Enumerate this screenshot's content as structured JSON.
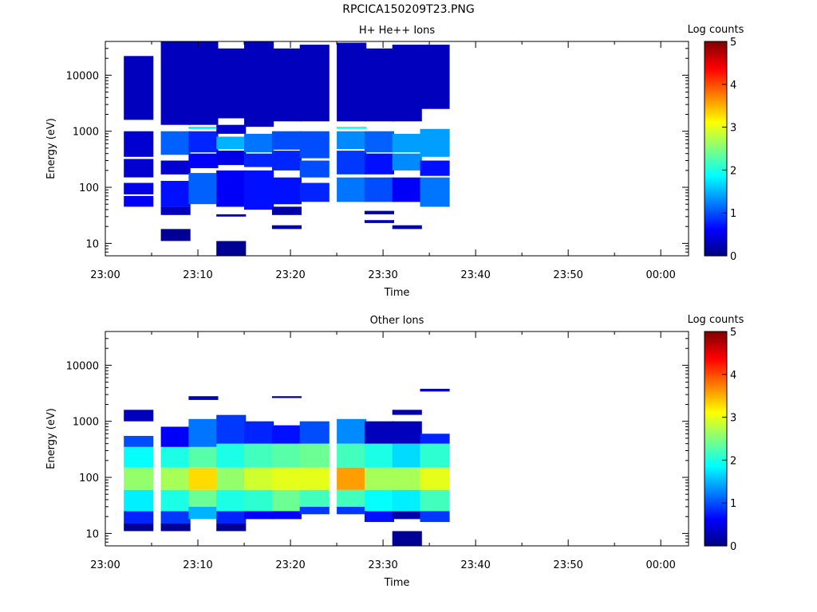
{
  "page_title": "RPCICA150209T23.PNG",
  "chart_data": [
    {
      "type": "heatmap",
      "title": "H+ He++ Ions",
      "xlabel": "Time",
      "ylabel": "Energy (eV)",
      "yscale": "log",
      "ylim": [
        6,
        40000
      ],
      "xlim": [
        "23:00",
        "00:03"
      ],
      "x_ticks": [
        "23:00",
        "23:10",
        "23:20",
        "23:30",
        "23:40",
        "23:50",
        "00:00"
      ],
      "y_ticks": [
        "10",
        "100",
        "1000",
        "10000"
      ],
      "colorbar": {
        "label": "Log counts",
        "min": 0,
        "max": 5,
        "ticks": [
          "0",
          "1",
          "2",
          "3",
          "4",
          "5"
        ]
      },
      "time_bins": [
        "23:02",
        "23:06",
        "23:09",
        "23:12",
        "23:15",
        "23:18",
        "23:21",
        "23:25",
        "23:28",
        "23:31",
        "23:34"
      ],
      "bands": [
        {
          "t": 0,
          "e": [
            45,
            70
          ],
          "v": 0.6
        },
        {
          "t": 0,
          "e": [
            75,
            120
          ],
          "v": 0.5
        },
        {
          "t": 0,
          "e": [
            150,
            320
          ],
          "v": 0.4
        },
        {
          "t": 0,
          "e": [
            350,
            1000
          ],
          "v": 0.4
        },
        {
          "t": 0,
          "e": [
            1600,
            22000
          ],
          "v": 0.3
        },
        {
          "t": 1,
          "e": [
            11,
            18
          ],
          "v": 0.1
        },
        {
          "t": 1,
          "e": [
            32,
            45
          ],
          "v": 0.3
        },
        {
          "t": 1,
          "e": [
            45,
            130
          ],
          "v": 0.7
        },
        {
          "t": 1,
          "e": [
            170,
            300
          ],
          "v": 0.4
        },
        {
          "t": 1,
          "e": [
            380,
            1000
          ],
          "v": 1.1
        },
        {
          "t": 1,
          "e": [
            1300,
            40000
          ],
          "v": 0.3
        },
        {
          "t": 2,
          "e": [
            50,
            180
          ],
          "v": 1.1
        },
        {
          "t": 2,
          "e": [
            220,
            400
          ],
          "v": 0.6
        },
        {
          "t": 2,
          "e": [
            420,
            1000
          ],
          "v": 0.8
        },
        {
          "t": 2,
          "e": [
            1100,
            1200
          ],
          "v": 1.8
        },
        {
          "t": 2,
          "e": [
            1300,
            40000
          ],
          "v": 0.3
        },
        {
          "t": 3,
          "e": [
            6,
            11
          ],
          "v": 0.1
        },
        {
          "t": 3,
          "e": [
            30,
            33
          ],
          "v": 0.3
        },
        {
          "t": 3,
          "e": [
            45,
            200
          ],
          "v": 0.6
        },
        {
          "t": 3,
          "e": [
            250,
            450
          ],
          "v": 0.5
        },
        {
          "t": 3,
          "e": [
            480,
            800
          ],
          "v": 1.5
        },
        {
          "t": 3,
          "e": [
            900,
            1300
          ],
          "v": 0.4
        },
        {
          "t": 3,
          "e": [
            1700,
            30000
          ],
          "v": 0.3
        },
        {
          "t": 4,
          "e": [
            40,
            200
          ],
          "v": 0.7
        },
        {
          "t": 4,
          "e": [
            230,
            400
          ],
          "v": 0.8
        },
        {
          "t": 4,
          "e": [
            420,
            900
          ],
          "v": 1.2
        },
        {
          "t": 4,
          "e": [
            1200,
            40000
          ],
          "v": 0.3
        },
        {
          "t": 5,
          "e": [
            32,
            45
          ],
          "v": 0.2
        },
        {
          "t": 5,
          "e": [
            50,
            150
          ],
          "v": 0.7
        },
        {
          "t": 5,
          "e": [
            200,
            450
          ],
          "v": 0.8
        },
        {
          "t": 5,
          "e": [
            470,
            1000
          ],
          "v": 1.0
        },
        {
          "t": 5,
          "e": [
            18,
            21
          ],
          "v": 0.2
        },
        {
          "t": 5,
          "e": [
            1500,
            30000
          ],
          "v": 0.3
        },
        {
          "t": 6,
          "e": [
            55,
            120
          ],
          "v": 0.8
        },
        {
          "t": 6,
          "e": [
            150,
            300
          ],
          "v": 1.0
        },
        {
          "t": 6,
          "e": [
            330,
            1000
          ],
          "v": 1.0
        },
        {
          "t": 6,
          "e": [
            1500,
            35000
          ],
          "v": 0.3
        },
        {
          "t": 7,
          "e": [
            55,
            150
          ],
          "v": 1.2
        },
        {
          "t": 7,
          "e": [
            170,
            450
          ],
          "v": 0.9
        },
        {
          "t": 7,
          "e": [
            480,
            1000
          ],
          "v": 1.3
        },
        {
          "t": 7,
          "e": [
            1100,
            1200
          ],
          "v": 2.0
        },
        {
          "t": 7,
          "e": [
            1500,
            38000
          ],
          "v": 0.3
        },
        {
          "t": 8,
          "e": [
            23,
            26
          ],
          "v": 0.3
        },
        {
          "t": 8,
          "e": [
            33,
            38
          ],
          "v": 0.2
        },
        {
          "t": 8,
          "e": [
            55,
            150
          ],
          "v": 1.0
        },
        {
          "t": 8,
          "e": [
            170,
            400
          ],
          "v": 0.7
        },
        {
          "t": 8,
          "e": [
            420,
            1000
          ],
          "v": 1.1
        },
        {
          "t": 8,
          "e": [
            1500,
            30000
          ],
          "v": 0.3
        },
        {
          "t": 9,
          "e": [
            18,
            21
          ],
          "v": 0.2
        },
        {
          "t": 9,
          "e": [
            55,
            150
          ],
          "v": 0.6
        },
        {
          "t": 9,
          "e": [
            200,
            400
          ],
          "v": 1.3
        },
        {
          "t": 9,
          "e": [
            420,
            900
          ],
          "v": 1.4
        },
        {
          "t": 9,
          "e": [
            1500,
            35000
          ],
          "v": 0.3
        },
        {
          "t": 10,
          "e": [
            45,
            150
          ],
          "v": 1.2
        },
        {
          "t": 10,
          "e": [
            160,
            300
          ],
          "v": 0.7
        },
        {
          "t": 10,
          "e": [
            350,
            1100
          ],
          "v": 1.4
        },
        {
          "t": 10,
          "e": [
            2500,
            35000
          ],
          "v": 0.3
        }
      ]
    },
    {
      "type": "heatmap",
      "title": "Other Ions",
      "xlabel": "Time",
      "ylabel": "Energy (eV)",
      "yscale": "log",
      "ylim": [
        6,
        40000
      ],
      "xlim": [
        "23:00",
        "00:03"
      ],
      "x_ticks": [
        "23:00",
        "23:10",
        "23:20",
        "23:30",
        "23:40",
        "23:50",
        "00:00"
      ],
      "y_ticks": [
        "10",
        "100",
        "1000",
        "10000"
      ],
      "colorbar": {
        "label": "Log counts",
        "min": 0,
        "max": 5,
        "ticks": [
          "0",
          "1",
          "2",
          "3",
          "4",
          "5"
        ]
      },
      "time_bins": [
        "23:02",
        "23:06",
        "23:09",
        "23:12",
        "23:15",
        "23:18",
        "23:21",
        "23:25",
        "23:28",
        "23:31",
        "23:34"
      ],
      "bands": [
        {
          "t": 0,
          "e": [
            11,
            15
          ],
          "v": 0.1
        },
        {
          "t": 0,
          "e": [
            15,
            25
          ],
          "v": 0.8
        },
        {
          "t": 0,
          "e": [
            25,
            60
          ],
          "v": 1.8
        },
        {
          "t": 0,
          "e": [
            60,
            150
          ],
          "v": 2.6
        },
        {
          "t": 0,
          "e": [
            150,
            350
          ],
          "v": 1.9
        },
        {
          "t": 0,
          "e": [
            350,
            550
          ],
          "v": 1.0
        },
        {
          "t": 0,
          "e": [
            1000,
            1600
          ],
          "v": 0.3
        },
        {
          "t": 1,
          "e": [
            11,
            15
          ],
          "v": 0.1
        },
        {
          "t": 1,
          "e": [
            15,
            25
          ],
          "v": 0.9
        },
        {
          "t": 1,
          "e": [
            25,
            60
          ],
          "v": 2.0
        },
        {
          "t": 1,
          "e": [
            60,
            150
          ],
          "v": 2.7
        },
        {
          "t": 1,
          "e": [
            150,
            350
          ],
          "v": 2.0
        },
        {
          "t": 1,
          "e": [
            350,
            800
          ],
          "v": 0.6
        },
        {
          "t": 2,
          "e": [
            18,
            30
          ],
          "v": 1.5
        },
        {
          "t": 2,
          "e": [
            30,
            60
          ],
          "v": 2.4
        },
        {
          "t": 2,
          "e": [
            60,
            150
          ],
          "v": 3.3
        },
        {
          "t": 2,
          "e": [
            150,
            350
          ],
          "v": 2.3
        },
        {
          "t": 2,
          "e": [
            350,
            1100
          ],
          "v": 1.2
        },
        {
          "t": 2,
          "e": [
            2400,
            2800
          ],
          "v": 0.3
        },
        {
          "t": 3,
          "e": [
            11,
            15
          ],
          "v": 0.1
        },
        {
          "t": 3,
          "e": [
            15,
            25
          ],
          "v": 0.8
        },
        {
          "t": 3,
          "e": [
            25,
            60
          ],
          "v": 2.0
        },
        {
          "t": 3,
          "e": [
            60,
            150
          ],
          "v": 2.6
        },
        {
          "t": 3,
          "e": [
            150,
            400
          ],
          "v": 2.0
        },
        {
          "t": 3,
          "e": [
            400,
            1300
          ],
          "v": 0.9
        },
        {
          "t": 4,
          "e": [
            18,
            25
          ],
          "v": 0.6
        },
        {
          "t": 4,
          "e": [
            25,
            60
          ],
          "v": 2.1
        },
        {
          "t": 4,
          "e": [
            60,
            150
          ],
          "v": 2.9
        },
        {
          "t": 4,
          "e": [
            150,
            400
          ],
          "v": 2.2
        },
        {
          "t": 4,
          "e": [
            400,
            1000
          ],
          "v": 0.8
        },
        {
          "t": 5,
          "e": [
            18,
            25
          ],
          "v": 0.6
        },
        {
          "t": 5,
          "e": [
            25,
            60
          ],
          "v": 2.4
        },
        {
          "t": 5,
          "e": [
            60,
            150
          ],
          "v": 3.0
        },
        {
          "t": 5,
          "e": [
            150,
            400
          ],
          "v": 2.3
        },
        {
          "t": 5,
          "e": [
            400,
            850
          ],
          "v": 0.7
        },
        {
          "t": 5,
          "e": [
            2600,
            2800
          ],
          "v": 0.2
        },
        {
          "t": 6,
          "e": [
            22,
            30
          ],
          "v": 0.9
        },
        {
          "t": 6,
          "e": [
            30,
            60
          ],
          "v": 2.2
        },
        {
          "t": 6,
          "e": [
            60,
            150
          ],
          "v": 3.0
        },
        {
          "t": 6,
          "e": [
            150,
            400
          ],
          "v": 2.4
        },
        {
          "t": 6,
          "e": [
            400,
            1000
          ],
          "v": 1.0
        },
        {
          "t": 7,
          "e": [
            22,
            30
          ],
          "v": 0.9
        },
        {
          "t": 7,
          "e": [
            30,
            60
          ],
          "v": 2.2
        },
        {
          "t": 7,
          "e": [
            60,
            150
          ],
          "v": 3.6
        },
        {
          "t": 7,
          "e": [
            150,
            400
          ],
          "v": 2.2
        },
        {
          "t": 7,
          "e": [
            400,
            1100
          ],
          "v": 1.3
        },
        {
          "t": 8,
          "e": [
            16,
            25
          ],
          "v": 0.7
        },
        {
          "t": 8,
          "e": [
            25,
            60
          ],
          "v": 1.9
        },
        {
          "t": 8,
          "e": [
            60,
            150
          ],
          "v": 2.7
        },
        {
          "t": 8,
          "e": [
            150,
            400
          ],
          "v": 2.0
        },
        {
          "t": 8,
          "e": [
            400,
            1000
          ],
          "v": 0.3
        },
        {
          "t": 9,
          "e": [
            6,
            11
          ],
          "v": 0.1
        },
        {
          "t": 9,
          "e": [
            18,
            25
          ],
          "v": 0.2
        },
        {
          "t": 9,
          "e": [
            25,
            60
          ],
          "v": 1.8
        },
        {
          "t": 9,
          "e": [
            60,
            150
          ],
          "v": 2.7
        },
        {
          "t": 9,
          "e": [
            150,
            400
          ],
          "v": 1.7
        },
        {
          "t": 9,
          "e": [
            400,
            1000
          ],
          "v": 0.3
        },
        {
          "t": 9,
          "e": [
            1300,
            1600
          ],
          "v": 0.2
        },
        {
          "t": 10,
          "e": [
            16,
            25
          ],
          "v": 0.9
        },
        {
          "t": 10,
          "e": [
            25,
            60
          ],
          "v": 2.2
        },
        {
          "t": 10,
          "e": [
            60,
            150
          ],
          "v": 3.0
        },
        {
          "t": 10,
          "e": [
            150,
            400
          ],
          "v": 2.1
        },
        {
          "t": 10,
          "e": [
            400,
            600
          ],
          "v": 0.8
        },
        {
          "t": 10,
          "e": [
            3400,
            3800
          ],
          "v": 0.3
        }
      ]
    }
  ]
}
